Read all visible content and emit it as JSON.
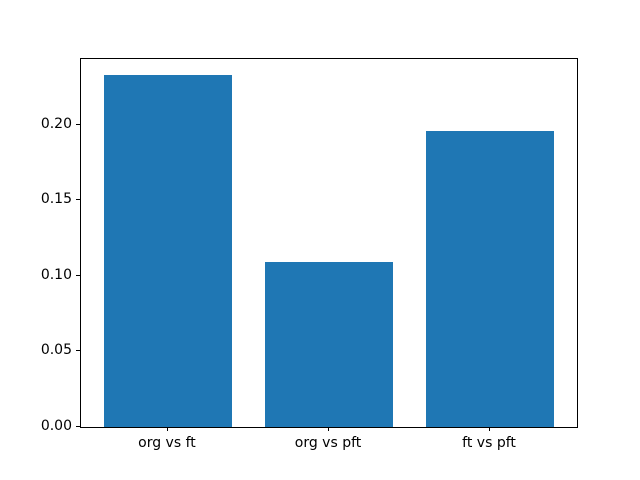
{
  "chart_data": {
    "type": "bar",
    "categories": [
      "org vs ft",
      "org vs pft",
      "ft vs pft"
    ],
    "values": [
      0.2326,
      0.1089,
      0.196
    ],
    "title": "",
    "xlabel": "",
    "ylabel": "",
    "ylim": [
      0,
      0.2434
    ],
    "xlim": [
      -0.54,
      2.54
    ],
    "bar_width": 0.8,
    "yticks": [
      0.0,
      0.05,
      0.1,
      0.15,
      0.2
    ],
    "ytick_labels": [
      "0.00",
      "0.05",
      "0.10",
      "0.15",
      "0.20"
    ],
    "grid": false,
    "legend_position": "none",
    "bar_color": "#1f77b4"
  },
  "figure": {
    "background_color": "#ffffff",
    "spine_color": "#000000",
    "tick_color": "#000000"
  }
}
